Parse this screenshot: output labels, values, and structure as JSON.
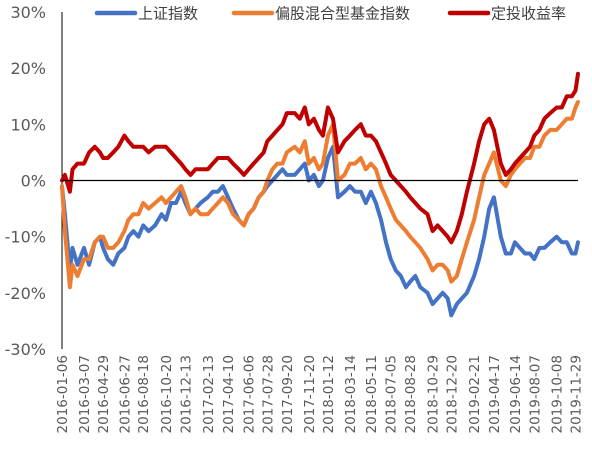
{
  "chart_data": {
    "type": "line",
    "title": "",
    "xlabel": "",
    "ylabel": "",
    "ylim": [
      -30,
      30
    ],
    "yticks": [
      30,
      20,
      10,
      0,
      -10,
      -20,
      -30
    ],
    "ytick_labels": [
      "30%",
      "20%",
      "10%",
      "0%",
      "-10%",
      "-20%",
      "-30%"
    ],
    "y_unit": "%",
    "grid": false,
    "legend_position": "top",
    "x_start": "2016-01-06",
    "x_end": "2019-12-06",
    "x_tick_labels": [
      "2016-01-06",
      "2016-03-07",
      "2016-04-29",
      "2016-06-27",
      "2016-08-18",
      "2016-10-20",
      "2016-12-13",
      "2017-02-13",
      "2017-04-10",
      "2017-06-06",
      "2017-07-28",
      "2017-09-20",
      "2017-11-20",
      "2018-01-12",
      "2018-03-14",
      "2018-05-11",
      "2018-07-05",
      "2018-08-28",
      "2018-10-29",
      "2018-12-20",
      "2019-02-21",
      "2019-04-17",
      "2019-06-14",
      "2019-08-07",
      "2019-10-08",
      "2019-11-29"
    ],
    "x": [
      "2016-01-06",
      "2016-01-14",
      "2016-01-28",
      "2016-02-04",
      "2016-02-18",
      "2016-03-07",
      "2016-03-21",
      "2016-04-06",
      "2016-04-20",
      "2016-04-29",
      "2016-05-12",
      "2016-05-27",
      "2016-06-10",
      "2016-06-27",
      "2016-07-08",
      "2016-07-22",
      "2016-08-05",
      "2016-08-18",
      "2016-09-02",
      "2016-09-20",
      "2016-10-08",
      "2016-10-20",
      "2016-11-03",
      "2016-11-17",
      "2016-12-01",
      "2016-12-13",
      "2016-12-27",
      "2017-01-10",
      "2017-01-24",
      "2017-02-13",
      "2017-02-27",
      "2017-03-13",
      "2017-03-27",
      "2017-04-10",
      "2017-04-24",
      "2017-05-10",
      "2017-05-24",
      "2017-06-06",
      "2017-06-20",
      "2017-07-04",
      "2017-07-18",
      "2017-07-28",
      "2017-08-11",
      "2017-08-25",
      "2017-09-08",
      "2017-09-20",
      "2017-10-12",
      "2017-10-26",
      "2017-11-09",
      "2017-11-20",
      "2017-12-04",
      "2017-12-18",
      "2017-12-29",
      "2018-01-12",
      "2018-01-26",
      "2018-02-09",
      "2018-02-27",
      "2018-03-14",
      "2018-03-28",
      "2018-04-13",
      "2018-04-27",
      "2018-05-11",
      "2018-05-25",
      "2018-06-08",
      "2018-06-22",
      "2018-07-05",
      "2018-07-19",
      "2018-08-02",
      "2018-08-16",
      "2018-08-28",
      "2018-09-11",
      "2018-09-25",
      "2018-10-15",
      "2018-10-29",
      "2018-11-12",
      "2018-11-26",
      "2018-12-10",
      "2018-12-20",
      "2019-01-04",
      "2019-01-18",
      "2019-02-01",
      "2019-02-21",
      "2019-03-07",
      "2019-03-21",
      "2019-04-04",
      "2019-04-17",
      "2019-05-06",
      "2019-05-20",
      "2019-06-03",
      "2019-06-14",
      "2019-06-28",
      "2019-07-12",
      "2019-07-26",
      "2019-08-07",
      "2019-08-21",
      "2019-09-04",
      "2019-09-20",
      "2019-10-08",
      "2019-10-22",
      "2019-11-05",
      "2019-11-19",
      "2019-11-29",
      "2019-12-06"
    ],
    "series": [
      {
        "name": "上证指数",
        "color": "#4472C4",
        "values": [
          -1,
          -6,
          -16,
          -12,
          -15,
          -12,
          -15,
          -11,
          -10,
          -12,
          -14,
          -15,
          -13,
          -12,
          -10,
          -9,
          -10,
          -8,
          -9,
          -8,
          -6,
          -7,
          -4,
          -4,
          -2,
          -4,
          -6,
          -5,
          -4,
          -3,
          -2,
          -2,
          -1,
          -3,
          -5,
          -7,
          -8,
          -6,
          -5,
          -3,
          -2,
          -1,
          0,
          1,
          2,
          1,
          1,
          2,
          3,
          0,
          1,
          -1,
          0,
          4,
          6,
          -3,
          -2,
          -1,
          -2,
          -2,
          -4,
          -2,
          -4,
          -7,
          -11,
          -14,
          -16,
          -17,
          -19,
          -18,
          -17,
          -19,
          -20,
          -22,
          -21,
          -20,
          -21,
          -24,
          -22,
          -21,
          -20,
          -17,
          -14,
          -10,
          -5,
          -3,
          -10,
          -13,
          -13,
          -11,
          -12,
          -13,
          -13,
          -14,
          -12,
          -12,
          -11,
          -10,
          -11,
          -11,
          -13,
          -13,
          -11
        ]
      },
      {
        "name": "偏股混合型基金指数",
        "color": "#ED7D31",
        "values": [
          -1,
          -9,
          -19,
          -15,
          -17,
          -14,
          -14,
          -11,
          -10,
          -10,
          -12,
          -12,
          -11,
          -9,
          -7,
          -6,
          -6,
          -4,
          -5,
          -4,
          -3,
          -4,
          -3,
          -2,
          -1,
          -3,
          -6,
          -5,
          -6,
          -6,
          -5,
          -4,
          -3,
          -4,
          -6,
          -7,
          -8,
          -6,
          -5,
          -3,
          -2,
          0,
          2,
          3,
          3,
          5,
          6,
          5,
          7,
          3,
          4,
          2,
          3,
          8,
          10,
          0,
          1,
          3,
          3,
          4,
          2,
          3,
          2,
          -1,
          -3,
          -5,
          -7,
          -8,
          -9,
          -10,
          -11,
          -12,
          -14,
          -16,
          -15,
          -15,
          -16,
          -18,
          -17,
          -14,
          -11,
          -7,
          -3,
          1,
          3,
          5,
          0,
          -1,
          1,
          2,
          3,
          4,
          4,
          6,
          6,
          8,
          9,
          9,
          10,
          11,
          11,
          13,
          14
        ]
      },
      {
        "name": "定投收益率",
        "color": "#C00000",
        "values": [
          0,
          1,
          -2,
          2,
          3,
          3,
          5,
          6,
          5,
          4,
          4,
          5,
          6,
          8,
          7,
          6,
          6,
          6,
          5,
          6,
          6,
          6,
          5,
          4,
          3,
          2,
          1,
          2,
          2,
          2,
          3,
          4,
          4,
          4,
          3,
          2,
          1,
          2,
          3,
          4,
          5,
          7,
          8,
          9,
          10,
          12,
          12,
          11,
          13,
          10,
          11,
          9,
          8,
          13,
          11,
          5,
          7,
          8,
          9,
          10,
          8,
          8,
          7,
          5,
          3,
          1,
          0,
          -1,
          -2,
          -3,
          -4,
          -5,
          -6,
          -9,
          -8,
          -9,
          -10,
          -11,
          -9,
          -6,
          -2,
          3,
          7,
          10,
          11,
          9,
          3,
          1,
          2,
          3,
          4,
          5,
          6,
          8,
          9,
          11,
          12,
          13,
          13,
          15,
          15,
          16,
          19
        ]
      }
    ]
  }
}
